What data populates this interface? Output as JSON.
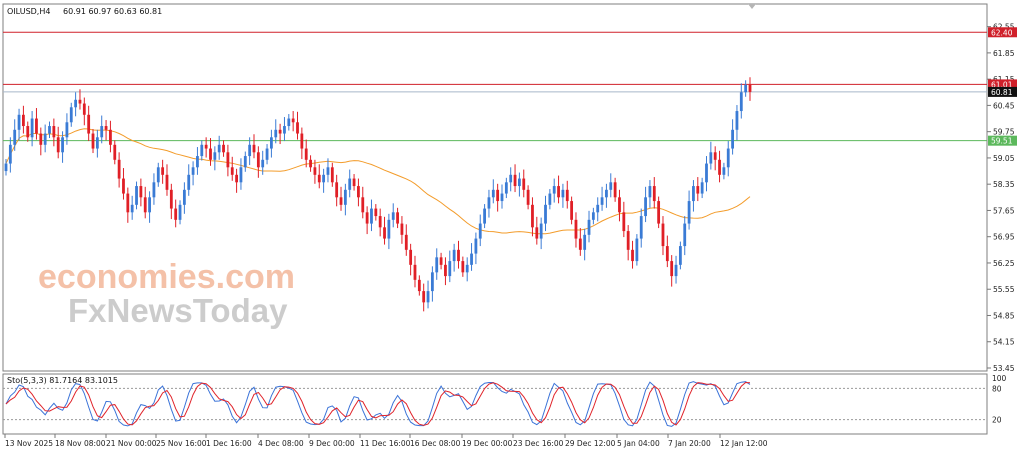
{
  "header": {
    "symbol": "OILUSD,H4",
    "ohlc": "60.91 60.97 60.63 60.81",
    "osc_label": "Sto(5,3,3) 81.7164 83.1015"
  },
  "watermark": {
    "line1": "economies.com",
    "line2": "FxNewsToday"
  },
  "colors": {
    "bull": "#3a7bd5",
    "bear": "#e01f26",
    "ma": "#f39c2b",
    "red_line": "#d0202a",
    "green_line": "#5cb85c",
    "price_line": "#a8b6c9",
    "stoch_k": "#3b73d8",
    "stoch_d": "#e0242b"
  },
  "chart_data": [
    {
      "type": "candlestick",
      "title": "OILUSD,H4",
      "ylim": [
        53.45,
        63.1
      ],
      "yticks": [
        "62.55",
        "61.85",
        "61.15",
        "60.45",
        "59.75",
        "59.05",
        "58.35",
        "57.65",
        "56.95",
        "56.25",
        "55.55",
        "54.85",
        "54.15",
        "53.45"
      ],
      "hlines": [
        {
          "label": "62.40",
          "value": 62.4,
          "kind": "red"
        },
        {
          "label": "61.01",
          "value": 61.01,
          "kind": "red"
        },
        {
          "label": "60.81",
          "value": 60.81,
          "kind": "current"
        },
        {
          "label": "59.51",
          "value": 59.51,
          "kind": "green"
        }
      ],
      "xticks": [
        "13 Nov 2025",
        "18 Nov 08:00",
        "21 Nov 00:00",
        "25 Nov 16:00",
        "1 Dec 16:00",
        "4 Dec 08:00",
        "9 Dec 00:00",
        "11 Dec 16:00",
        "16 Dec 08:00",
        "19 Dec 00:00",
        "23 Dec 16:00",
        "29 Dec 12:00",
        "5 Jan 04:00",
        "7 Jan 20:00",
        "12 Jan 12:00"
      ],
      "close": [
        58.9,
        59.4,
        59.8,
        60.2,
        59.9,
        59.6,
        60.1,
        59.7,
        59.4,
        59.7,
        59.9,
        59.6,
        59.2,
        59.6,
        60.0,
        60.4,
        60.6,
        60.5,
        60.2,
        59.7,
        59.3,
        59.6,
        59.9,
        59.8,
        59.4,
        59.0,
        58.5,
        58.1,
        57.6,
        57.8,
        58.3,
        58.0,
        57.6,
        58.0,
        58.4,
        58.8,
        58.6,
        58.2,
        57.7,
        57.4,
        57.8,
        58.2,
        58.6,
        58.8,
        59.1,
        59.4,
        59.3,
        59.0,
        59.2,
        59.4,
        59.2,
        58.8,
        58.6,
        58.4,
        58.8,
        59.1,
        59.4,
        59.2,
        58.8,
        59.0,
        59.3,
        59.6,
        59.8,
        59.7,
        59.9,
        60.1,
        60.0,
        59.7,
        59.3,
        59.0,
        58.8,
        58.6,
        58.4,
        58.6,
        58.8,
        58.4,
        58.0,
        57.8,
        58.2,
        58.5,
        58.3,
        58.0,
        57.6,
        57.3,
        57.7,
        57.5,
        57.2,
        56.9,
        57.4,
        57.6,
        57.3,
        57.0,
        56.6,
        56.2,
        55.8,
        55.5,
        55.2,
        55.5,
        56.0,
        56.4,
        56.2,
        55.9,
        56.3,
        56.6,
        56.3,
        56.0,
        56.2,
        56.5,
        56.9,
        57.3,
        57.7,
        58.0,
        58.2,
        57.9,
        58.1,
        58.4,
        58.6,
        58.3,
        58.5,
        58.2,
        57.8,
        57.2,
        56.9,
        57.3,
        57.8,
        58.1,
        58.3,
        58.0,
        58.2,
        57.9,
        57.4,
        56.9,
        56.6,
        57.0,
        57.4,
        57.6,
        57.8,
        58.0,
        58.2,
        58.4,
        58.0,
        57.6,
        57.1,
        56.6,
        56.3,
        56.9,
        57.5,
        58.0,
        58.3,
        57.9,
        57.3,
        56.7,
        56.3,
        55.9,
        56.2,
        56.7,
        57.3,
        57.9,
        58.3,
        58.1,
        58.4,
        58.9,
        59.2,
        59.0,
        58.6,
        58.8,
        59.3,
        59.8,
        60.3,
        60.8,
        61.0,
        60.81
      ],
      "ma_period": 40,
      "stoch_k_label": "Sto(5,3,3) 81.7164 83.1015",
      "stoch_levels": [
        80,
        20
      ],
      "stoch_ylim": [
        0,
        100
      ]
    }
  ]
}
